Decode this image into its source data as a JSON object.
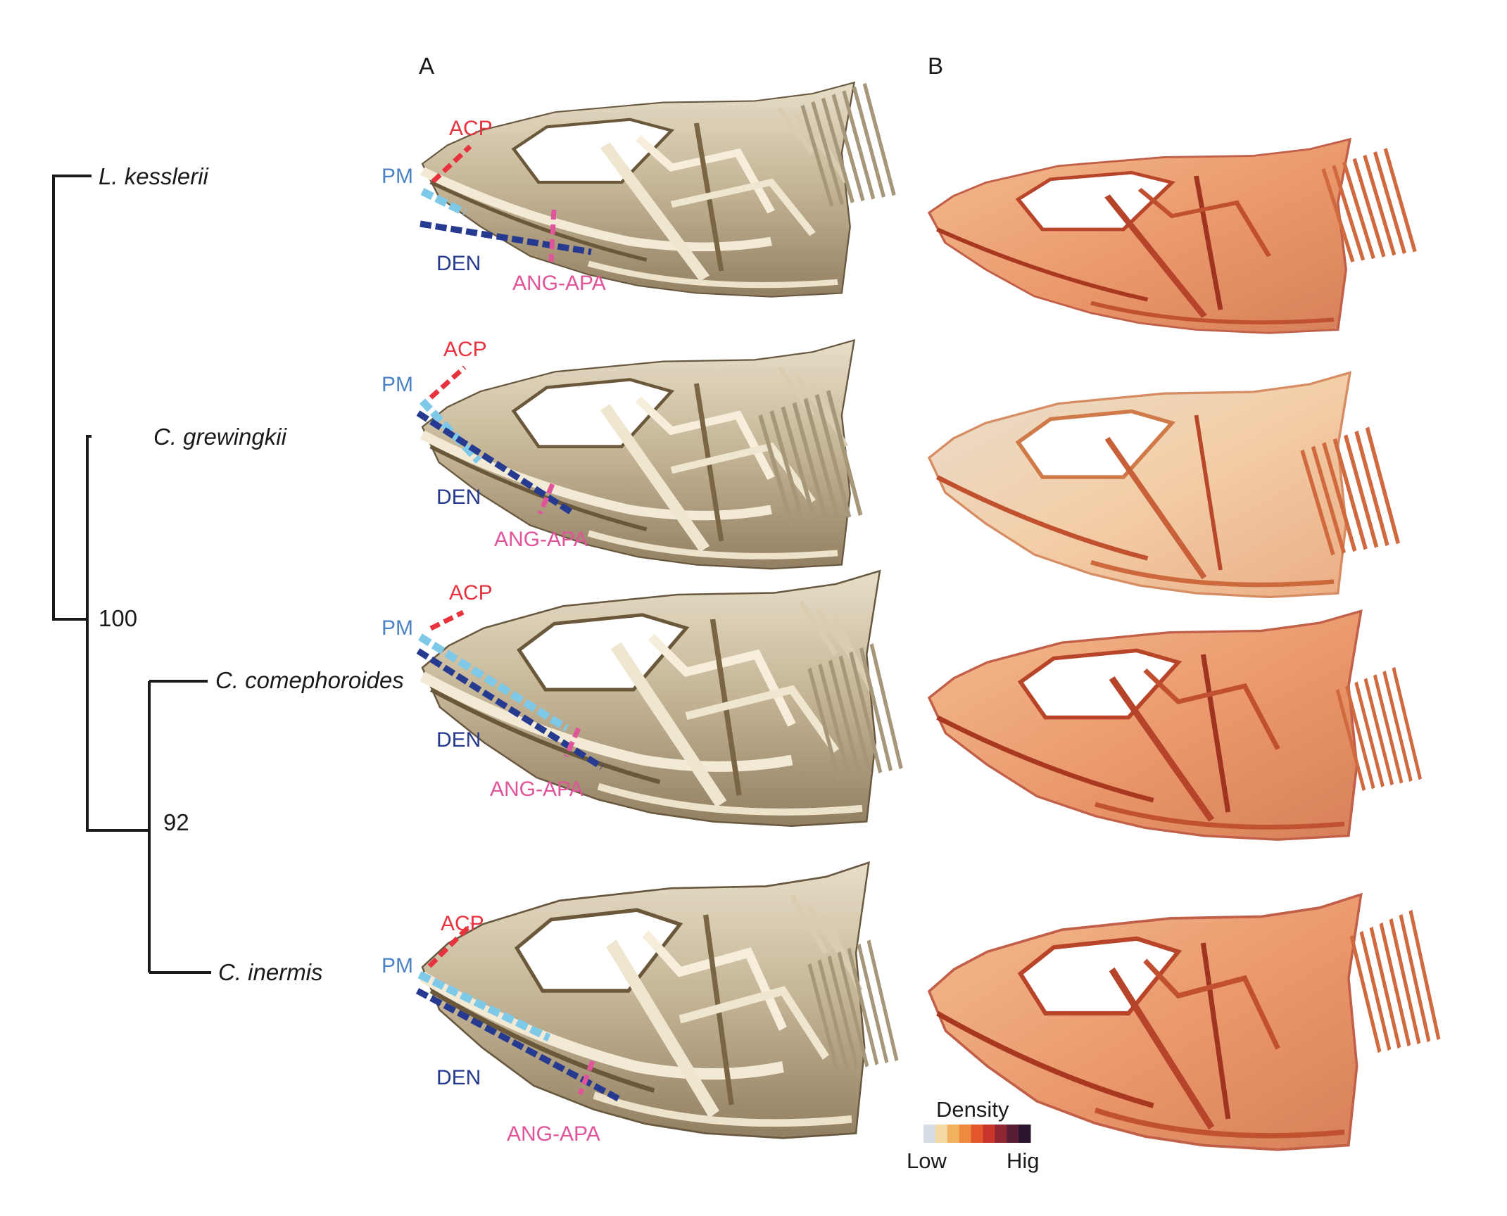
{
  "panel_labels": {
    "a": "A",
    "b": "B"
  },
  "tree": {
    "tips": [
      "L. kesslerii",
      "C. grewingkii",
      "C. comephoroides",
      "C. inermis"
    ],
    "support": [
      "100",
      "92"
    ]
  },
  "bone_labels": {
    "acp": "ACP",
    "pm": "PM",
    "den": "DEN",
    "ang_apa": "ANG-APA"
  },
  "legend": {
    "title": "Density",
    "low": "Low",
    "high": "Hig",
    "colors": [
      "#d7dde5",
      "#f3d9a4",
      "#f2b15e",
      "#ed8a3e",
      "#e3572f",
      "#c7352b",
      "#8e2533",
      "#5a1d36",
      "#2c1530"
    ]
  },
  "colors": {
    "acp": "#e8323e",
    "pm": "#7ec8e8",
    "den": "#263a8f",
    "ang_apa": "#e0549a",
    "bone": "#c6b89a",
    "bone_dark": "#5c4a30",
    "density_fill": "#e98a55",
    "density_line": "#b8442a"
  }
}
